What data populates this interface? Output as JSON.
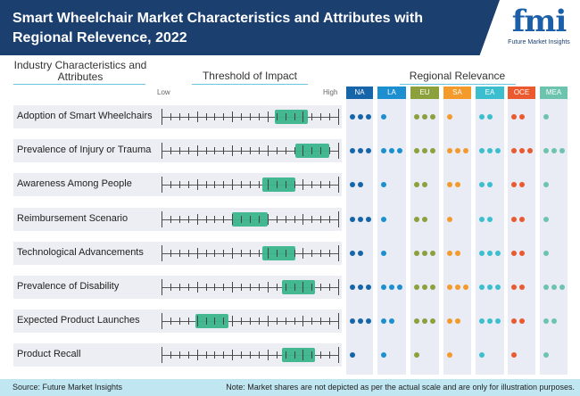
{
  "header": {
    "title": "Smart Wheelchair Market Characteristics and Attributes with Regional Relevence, 2022",
    "logo_mark": "fmi",
    "logo_text": "Future Market Insights"
  },
  "columns": {
    "characteristics": "Industry Characteristics and Attributes",
    "threshold": "Threshold of Impact",
    "regional": "Regional Relevance",
    "low": "Low",
    "high": "High"
  },
  "regions": [
    {
      "label": "NA",
      "color": "#1565a8"
    },
    {
      "label": "LA",
      "color": "#1b8fd0"
    },
    {
      "label": "EU",
      "color": "#8ca03c"
    },
    {
      "label": "SA",
      "color": "#f39a2b"
    },
    {
      "label": "EA",
      "color": "#3bbfcf"
    },
    {
      "label": "OCE",
      "color": "#ea5a2e"
    },
    {
      "label": "MEA",
      "color": "#6cc4ae"
    }
  ],
  "rows": [
    {
      "label": "Adoption of Smart Wheelchairs",
      "impact": [
        64,
        83
      ],
      "relevance": [
        3,
        1,
        3,
        1,
        2,
        2,
        1
      ]
    },
    {
      "label": "Prevalence of Injury or Trauma",
      "impact": [
        76,
        95
      ],
      "relevance": [
        3,
        3,
        3,
        3,
        3,
        3,
        3
      ]
    },
    {
      "label": "Awareness Among People",
      "impact": [
        57,
        76
      ],
      "relevance": [
        2,
        1,
        2,
        2,
        2,
        2,
        1
      ]
    },
    {
      "label": "Reimbursement Scenario",
      "impact": [
        40,
        60
      ],
      "relevance": [
        3,
        1,
        2,
        1,
        2,
        2,
        1
      ]
    },
    {
      "label": "Technological Advancements",
      "impact": [
        57,
        76
      ],
      "relevance": [
        2,
        1,
        3,
        2,
        3,
        2,
        1
      ]
    },
    {
      "label": "Prevalence of Disability",
      "impact": [
        68,
        87
      ],
      "relevance": [
        3,
        3,
        3,
        3,
        3,
        2,
        3
      ]
    },
    {
      "label": "Expected Product Launches",
      "impact": [
        19,
        38
      ],
      "relevance": [
        3,
        2,
        3,
        2,
        3,
        2,
        2
      ]
    },
    {
      "label": "Product Recall",
      "impact": [
        68,
        87
      ],
      "relevance": [
        1,
        1,
        1,
        1,
        1,
        1,
        1
      ]
    }
  ],
  "footer": {
    "source": "Source: Future Market Insights",
    "note": "Note: Market shares are not depicted as per the actual scale and are only for illustration purposes."
  }
}
